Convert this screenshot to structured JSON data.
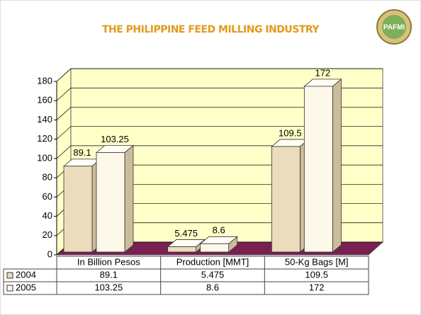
{
  "chart_data": {
    "type": "bar3d",
    "title": "THE PHILIPPINE FEED MILLING INDUSTRY",
    "logo": "PAFMI",
    "categories": [
      "In Billion Pesos",
      "Production [MMT]",
      "50-Kg Bags [M]"
    ],
    "series": [
      {
        "name": "2004",
        "color": "#eadcbd",
        "values": [
          89.1,
          5.475,
          109.5
        ]
      },
      {
        "name": "2005",
        "color": "#fdf8ea",
        "values": [
          103.25,
          8.6,
          172
        ]
      }
    ],
    "ylim": [
      0,
      180
    ],
    "yticks": [
      0,
      20,
      40,
      60,
      80,
      100,
      120,
      140,
      160,
      180
    ],
    "grid": true,
    "wall_color": "#ffffc8",
    "floor_color": "#7a1f52"
  }
}
